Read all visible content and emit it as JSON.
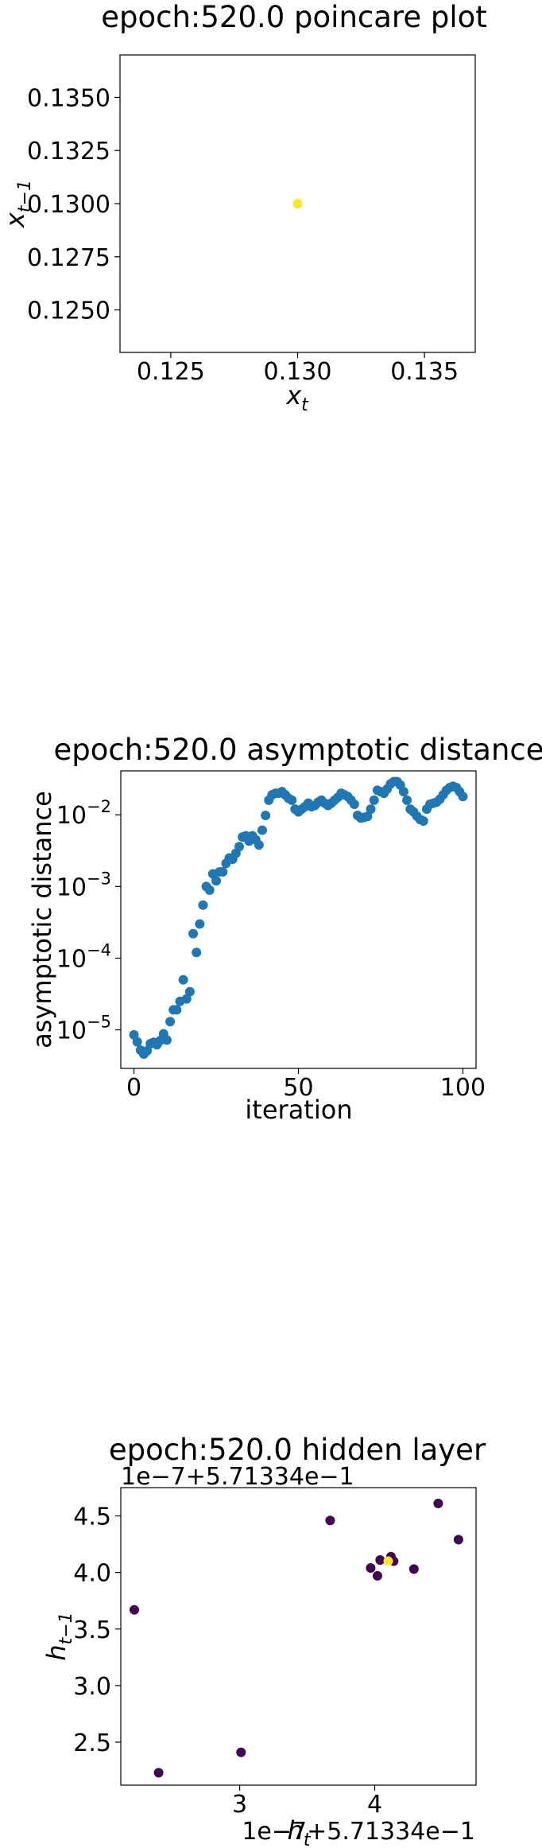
{
  "chart_data": [
    {
      "type": "scatter",
      "title": "epoch:520.0 poincare plot",
      "xlabel_main": "x",
      "xlabel_sub": "t",
      "ylabel_main": "x",
      "ylabel_sub": "t−1",
      "xlim": [
        0.123,
        0.137
      ],
      "ylim": [
        0.123,
        0.137
      ],
      "xticks": [
        0.125,
        0.13,
        0.135
      ],
      "xtick_labels": [
        "0.125",
        "0.130",
        "0.135"
      ],
      "yticks": [
        0.125,
        0.1275,
        0.13,
        0.1325,
        0.135
      ],
      "ytick_labels": [
        "0.1250",
        "0.1275",
        "0.1300",
        "0.1325",
        "0.1350"
      ],
      "grid": false,
      "points": [
        {
          "x": 0.13,
          "y": 0.13,
          "color": "#fde725"
        }
      ]
    },
    {
      "type": "scatter",
      "title": "epoch:520.0 asymptotic distance",
      "xlabel": "iteration",
      "ylabel": "asymptotic distance",
      "yscale": "log",
      "xlim": [
        -4,
        104
      ],
      "ylim": [
        2.9e-06,
        0.041
      ],
      "xticks": [
        0,
        50,
        100
      ],
      "xtick_labels": [
        "0",
        "50",
        "100"
      ],
      "yticks": [
        1e-05,
        0.0001,
        0.001,
        0.01
      ],
      "ytick_base": "10",
      "ytick_exponents": [
        "−5",
        "−4",
        "−3",
        "−2"
      ],
      "grid": false,
      "color": "#1f77b4",
      "x": [
        0,
        1,
        2,
        3,
        4,
        5,
        6,
        7,
        8,
        9,
        10,
        11,
        12,
        13,
        14,
        15,
        16,
        17,
        18,
        19,
        20,
        21,
        22,
        23,
        24,
        25,
        26,
        27,
        28,
        29,
        30,
        31,
        32,
        33,
        34,
        35,
        36,
        37,
        38,
        39,
        40,
        41,
        42,
        43,
        44,
        45,
        46,
        47,
        48,
        49,
        50,
        51,
        52,
        53,
        54,
        55,
        56,
        57,
        58,
        59,
        60,
        61,
        62,
        63,
        64,
        65,
        66,
        67,
        68,
        69,
        70,
        71,
        72,
        73,
        74,
        75,
        76,
        77,
        78,
        79,
        80,
        81,
        82,
        83,
        84,
        85,
        86,
        87,
        88,
        89,
        90,
        91,
        92,
        93,
        94,
        95,
        96,
        97,
        98,
        99,
        100
      ],
      "values": [
        8.5e-06,
        6.8e-06,
        5.2e-06,
        4.6e-06,
        5.1e-06,
        6.4e-06,
        6.7e-06,
        6.2e-06,
        7.1e-06,
        8.8e-06,
        7.2e-06,
        1.3e-05,
        1.9e-05,
        1.9e-05,
        2.5e-05,
        5e-05,
        2.7e-05,
        3.4e-05,
        0.00022,
        0.00012,
        0.0003,
        0.00055,
        0.001,
        0.00089,
        0.0015,
        0.0012,
        0.0016,
        0.0016,
        0.0021,
        0.0025,
        0.0024,
        0.0029,
        0.0036,
        0.0049,
        0.0051,
        0.0043,
        0.0051,
        0.0045,
        0.0038,
        0.0061,
        0.0098,
        0.016,
        0.019,
        0.02,
        0.02,
        0.021,
        0.019,
        0.017,
        0.016,
        0.012,
        0.011,
        0.012,
        0.013,
        0.0145,
        0.013,
        0.0135,
        0.015,
        0.016,
        0.0145,
        0.0135,
        0.0145,
        0.016,
        0.0175,
        0.02,
        0.019,
        0.018,
        0.016,
        0.014,
        0.0098,
        0.009,
        0.0092,
        0.0095,
        0.012,
        0.016,
        0.022,
        0.021,
        0.02,
        0.023,
        0.027,
        0.029,
        0.029,
        0.026,
        0.021,
        0.016,
        0.012,
        0.011,
        0.0096,
        0.0086,
        0.0082,
        0.012,
        0.014,
        0.0145,
        0.015,
        0.0165,
        0.019,
        0.022,
        0.024,
        0.025,
        0.024,
        0.021,
        0.018
      ]
    },
    {
      "type": "scatter",
      "title": "epoch:520.0 hidden layer",
      "xlabel_main": "h",
      "xlabel_sub": "t",
      "ylabel_main": "h",
      "ylabel_sub": "t−1",
      "y_offset_text": "1e−7+5.71334e−1",
      "x_offset_text": "1e−7+5.71334e−1",
      "xlim": [
        2.12,
        4.75
      ],
      "ylim": [
        2.12,
        4.75
      ],
      "xticks": [
        3,
        4
      ],
      "xtick_labels": [
        "3",
        "4"
      ],
      "yticks": [
        2.5,
        3.0,
        3.5,
        4.0,
        4.5
      ],
      "ytick_labels": [
        "2.5",
        "3.0",
        "3.5",
        "4.0",
        "4.5"
      ],
      "grid": false,
      "points": [
        {
          "x": 2.22,
          "y": 3.67,
          "color": "#440154"
        },
        {
          "x": 2.4,
          "y": 2.23,
          "color": "#440154"
        },
        {
          "x": 3.01,
          "y": 2.41,
          "color": "#440154"
        },
        {
          "x": 3.67,
          "y": 4.46,
          "color": "#440154"
        },
        {
          "x": 3.97,
          "y": 4.04,
          "color": "#440154"
        },
        {
          "x": 4.02,
          "y": 3.97,
          "color": "#440154"
        },
        {
          "x": 4.04,
          "y": 4.11,
          "color": "#440154"
        },
        {
          "x": 4.12,
          "y": 4.14,
          "color": "#440154"
        },
        {
          "x": 4.14,
          "y": 4.1,
          "color": "#440154"
        },
        {
          "x": 4.29,
          "y": 4.03,
          "color": "#440154"
        },
        {
          "x": 4.47,
          "y": 4.61,
          "color": "#440154"
        },
        {
          "x": 4.62,
          "y": 4.29,
          "color": "#440154"
        },
        {
          "x": 4.1,
          "y": 4.1,
          "color": "#fde725"
        }
      ]
    }
  ]
}
